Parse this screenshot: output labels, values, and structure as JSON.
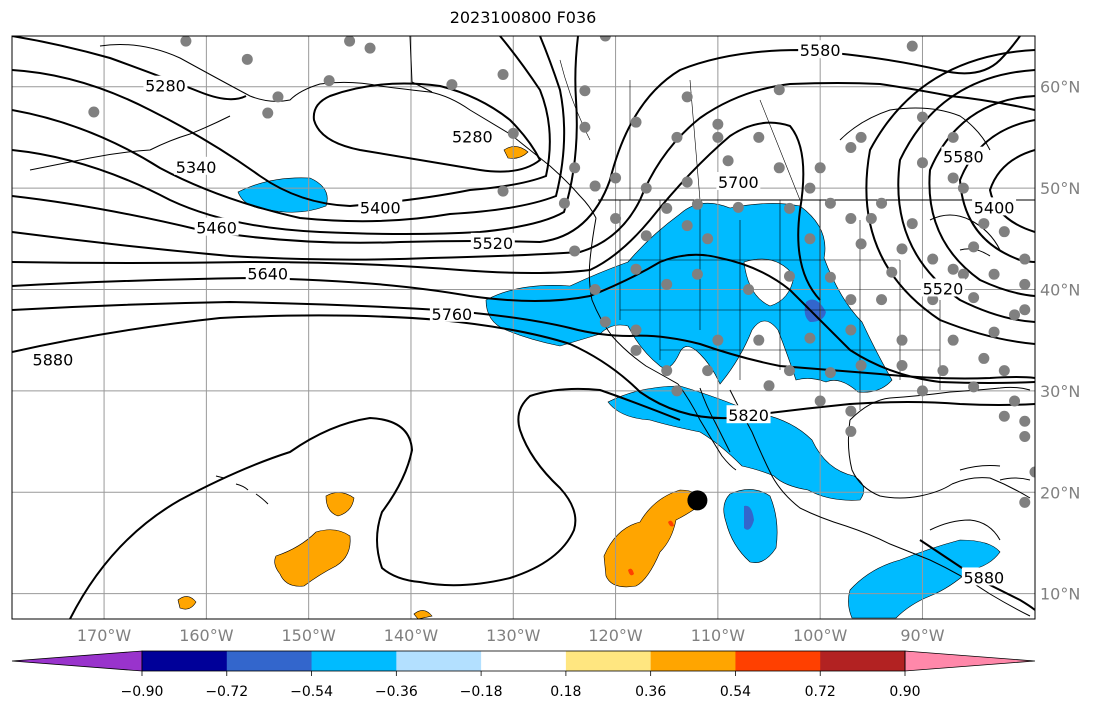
{
  "title": "2023100800 F036",
  "map": {
    "projection": "plate-carree",
    "lon_range": [
      -179,
      -79
    ],
    "lat_range": [
      7.5,
      65
    ],
    "lon_ticks": [
      "170°W",
      "160°W",
      "150°W",
      "140°W",
      "130°W",
      "120°W",
      "110°W",
      "100°W",
      "90°W"
    ],
    "lat_ticks": [
      "10°N",
      "20°N",
      "30°N",
      "40°N",
      "50°N",
      "60°N"
    ],
    "grid": true,
    "marker": {
      "name": "storm-center-marker",
      "lon": -112,
      "lat": 19.2
    }
  },
  "contour_labels": [
    {
      "text": "5280",
      "lon": -164,
      "lat": 60
    },
    {
      "text": "5280",
      "lon": -134,
      "lat": 55
    },
    {
      "text": "5340",
      "lon": -161,
      "lat": 52
    },
    {
      "text": "5400",
      "lon": -143,
      "lat": 48
    },
    {
      "text": "5460",
      "lon": -159,
      "lat": 46
    },
    {
      "text": "5520",
      "lon": -132,
      "lat": 44.5
    },
    {
      "text": "5580",
      "lon": -100,
      "lat": 63.5
    },
    {
      "text": "5580",
      "lon": -86,
      "lat": 53
    },
    {
      "text": "5400",
      "lon": -83,
      "lat": 48
    },
    {
      "text": "5520",
      "lon": -88,
      "lat": 40
    },
    {
      "text": "5640",
      "lon": -154,
      "lat": 41.5
    },
    {
      "text": "5700",
      "lon": -108,
      "lat": 50.5
    },
    {
      "text": "5760",
      "lon": -136,
      "lat": 37.5
    },
    {
      "text": "5820",
      "lon": -107,
      "lat": 27.5
    },
    {
      "text": "5880",
      "lon": -175,
      "lat": 33
    },
    {
      "text": "5880",
      "lon": -84,
      "lat": 11.5
    }
  ],
  "colorbar": {
    "ticks": [
      "−0.90",
      "−0.72",
      "−0.54",
      "−0.36",
      "−0.18",
      "0.18",
      "0.36",
      "0.54",
      "0.72",
      "0.90"
    ],
    "colors": [
      "#9933cc",
      "#000099",
      "#3366cc",
      "#00bbff",
      "#b3e0ff",
      "#ffffff",
      "#ffe680",
      "#ffa500",
      "#ff4000",
      "#b22222",
      "#ff88aa"
    ]
  },
  "colors": {
    "contour": "#000000",
    "station": "#808080",
    "grid": "#999999"
  },
  "chart_data": {
    "type": "heatmap",
    "title": "2023100800 F036",
    "xlabel": "",
    "ylabel": "",
    "x_range_deg_lon": [
      -179,
      -79
    ],
    "y_range_deg_lat": [
      7.5,
      65
    ],
    "contour_levels": [
      5280,
      5340,
      5400,
      5460,
      5520,
      5580,
      5640,
      5700,
      5760,
      5820,
      5880
    ],
    "colorbar_bounds": [
      -0.9,
      -0.72,
      -0.54,
      -0.36,
      -0.18,
      0.18,
      0.36,
      0.54,
      0.72,
      0.9
    ],
    "grid": true
  }
}
